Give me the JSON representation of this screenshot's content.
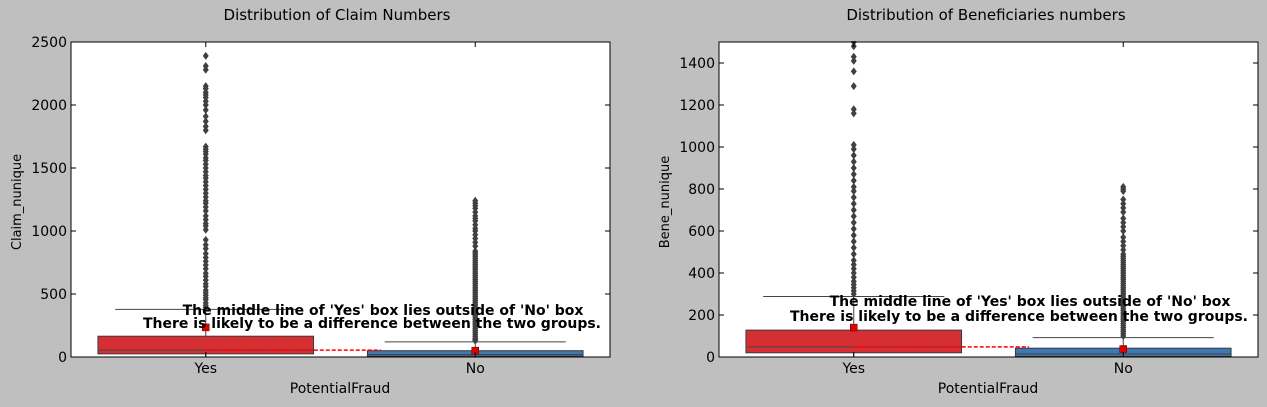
{
  "colors": {
    "background": "#bfbfbf",
    "plot_bg": "#ffffff",
    "yes_box": "#d62f33",
    "no_box": "#3f78b2",
    "outlier": "#404040",
    "mean_marker": "#e00000",
    "mean_line": "#ff0000"
  },
  "chart_data": [
    {
      "type": "box",
      "title": "Distribution of Claim Numbers",
      "xlabel": "PotentialFraud",
      "ylabel": "Claim_nunique",
      "categories": [
        "Yes",
        "No"
      ],
      "ylim": [
        0,
        2500
      ],
      "yticks": [
        0,
        500,
        1000,
        1500,
        2000,
        2500
      ],
      "ytick_labels": [
        "0",
        "500",
        "1000",
        "1500",
        "2000",
        "2500"
      ],
      "boxes": [
        {
          "category": "Yes",
          "q1": 25,
          "median": 55,
          "q3": 165,
          "whisker_low": 1,
          "whisker_high": 378,
          "mean": 235,
          "outliers": [
            395,
            410,
            430,
            455,
            470,
            490,
            510,
            530,
            560,
            580,
            610,
            640,
            665,
            700,
            730,
            760,
            790,
            820,
            860,
            890,
            930,
            1010,
            1040,
            1060,
            1090,
            1120,
            1160,
            1190,
            1220,
            1240,
            1270,
            1300,
            1330,
            1360,
            1390,
            1420,
            1440,
            1470,
            1500,
            1530,
            1560,
            1580,
            1610,
            1630,
            1650,
            1670,
            1800,
            1830,
            1870,
            1910,
            1960,
            2000,
            2030,
            2060,
            2080,
            2100,
            2130,
            2150,
            2280,
            2310,
            2390
          ]
        },
        {
          "category": "No",
          "q1": 6,
          "median": 20,
          "q3": 50,
          "whisker_low": 1,
          "whisker_high": 120,
          "mean": 50,
          "outliers": [
            130,
            140,
            150,
            165,
            180,
            195,
            210,
            225,
            240,
            255,
            270,
            285,
            300,
            315,
            330,
            345,
            360,
            375,
            390,
            405,
            420,
            435,
            450,
            465,
            480,
            495,
            510,
            525,
            540,
            555,
            570,
            585,
            600,
            615,
            630,
            645,
            660,
            675,
            690,
            705,
            720,
            735,
            750,
            765,
            780,
            795,
            810,
            825,
            840,
            880,
            910,
            940,
            970,
            1000,
            1020,
            1050,
            1080,
            1100,
            1120,
            1150,
            1180,
            1200,
            1220,
            1240
          ]
        }
      ],
      "annotations": [
        "The middle line of 'Yes' box lies outside of 'No' box",
        "There is likely to be a difference between the two groups."
      ]
    },
    {
      "type": "box",
      "title": "Distribution of Beneficiaries numbers",
      "xlabel": "PotentialFraud",
      "ylabel": "Bene_nunique",
      "categories": [
        "Yes",
        "No"
      ],
      "ylim": [
        0,
        1500
      ],
      "yticks": [
        0,
        200,
        400,
        600,
        800,
        1000,
        1200,
        1400
      ],
      "ytick_labels": [
        "0",
        "200",
        "400",
        "600",
        "800",
        "1000",
        "1200",
        "1400"
      ],
      "boxes": [
        {
          "category": "Yes",
          "q1": 20,
          "median": 48,
          "q3": 128,
          "whisker_low": 1,
          "whisker_high": 288,
          "mean": 140,
          "outliers": [
            300,
            315,
            330,
            345,
            360,
            380,
            400,
            420,
            440,
            460,
            490,
            520,
            550,
            580,
            610,
            640,
            670,
            700,
            730,
            760,
            790,
            810,
            840,
            870,
            900,
            930,
            960,
            990,
            1010,
            1160,
            1180,
            1290,
            1360,
            1410,
            1430,
            1480,
            1500
          ]
        },
        {
          "category": "No",
          "q1": 3,
          "median": 15,
          "q3": 42,
          "whisker_low": 1,
          "whisker_high": 92,
          "mean": 38,
          "outliers": [
            100,
            110,
            120,
            130,
            140,
            150,
            160,
            170,
            180,
            190,
            200,
            210,
            220,
            230,
            240,
            250,
            260,
            270,
            280,
            290,
            300,
            310,
            320,
            330,
            340,
            350,
            360,
            370,
            380,
            390,
            400,
            410,
            420,
            430,
            440,
            450,
            460,
            470,
            480,
            490,
            510,
            530,
            550,
            570,
            600,
            620,
            640,
            660,
            690,
            710,
            730,
            750,
            790,
            800,
            810
          ]
        }
      ],
      "annotations": [
        "The middle line of 'Yes' box lies outside of 'No' box",
        "There is likely to be a difference between the two groups."
      ]
    }
  ]
}
